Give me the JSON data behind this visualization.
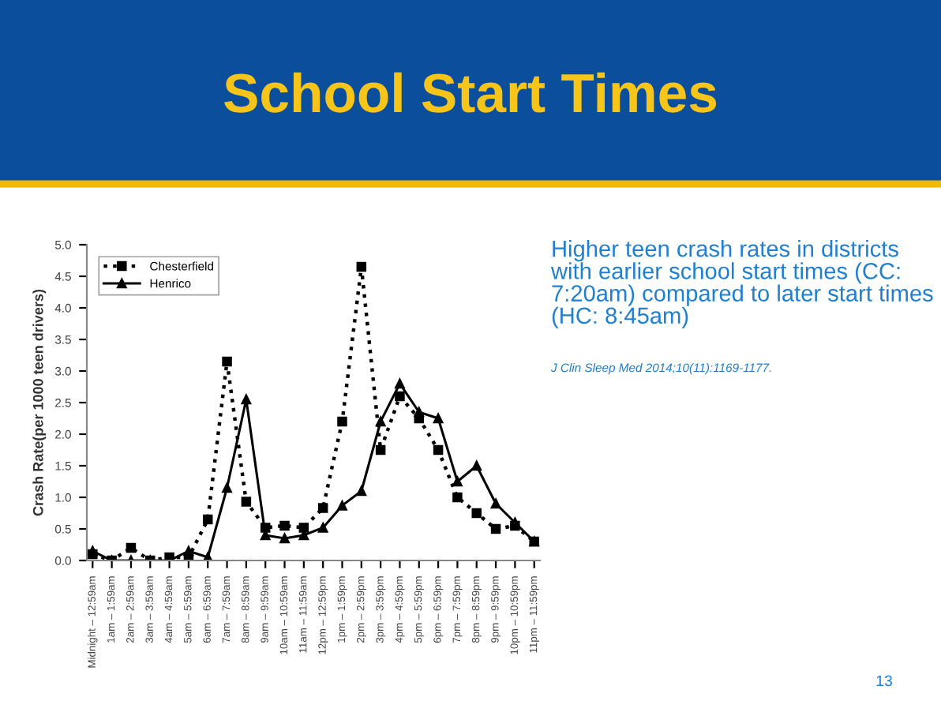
{
  "chart_data": {
    "type": "line",
    "title": "School Start Times",
    "ylabel": "Crash Rate(per 1000 teen drivers)",
    "annotations": [
      "Higher teen crash rates in districts with earlier school start times (CC: 7:20am) compared to later start times (HC: 8:45am)",
      "J Clin Sleep Med 2014;10(11):1169-1177.",
      "13"
    ],
    "categories": [
      "Midnight – 12:59am",
      "1am – 1:59am",
      "2am – 2:59am",
      "3am – 3:59am",
      "4am – 4:59am",
      "5am – 5:59am",
      "6am – 6:59am",
      "7am – 7:59am",
      "8am – 8:59am",
      "9am – 9:59am",
      "10am – 10:59am",
      "11am – 11:59am",
      "12pm – 12:59pm",
      "1pm – 1:59pm",
      "2pm – 2:59pm",
      "3pm – 3:59pm",
      "4pm – 4:59pm",
      "5pm – 5:59pm",
      "6pm – 6:59pm",
      "7pm – 7:59pm",
      "8pm – 8:59pm",
      "9pm – 9:59pm",
      "10pm – 10:59pm",
      "11pm – 11:59pm"
    ],
    "series": [
      {
        "name": "Chesterfield",
        "color": "#000000",
        "marker": "square",
        "line_style": "dotted",
        "values": [
          0.1,
          0.0,
          0.2,
          0.0,
          0.05,
          0.05,
          0.65,
          3.15,
          0.93,
          0.52,
          0.55,
          0.52,
          0.83,
          2.2,
          4.65,
          1.75,
          2.6,
          2.25,
          1.75,
          1.0,
          0.75,
          0.5,
          0.55,
          0.3
        ]
      },
      {
        "name": "Henrico",
        "color": "#000000",
        "marker": "triangle",
        "line_style": "solid",
        "values": [
          0.15,
          0.0,
          0.0,
          0.0,
          0.0,
          0.15,
          0.05,
          1.15,
          2.55,
          0.4,
          0.35,
          0.4,
          0.52,
          0.87,
          1.1,
          2.2,
          2.8,
          2.35,
          2.25,
          1.25,
          1.5,
          0.9,
          0.6,
          0.3
        ]
      }
    ],
    "ylim": [
      0,
      5
    ],
    "yticks": [
      {
        "value": 0,
        "label": "0.0"
      },
      0.5,
      {
        "value": 1,
        "label": "1.0"
      },
      1.5,
      {
        "value": 2,
        "label": "2.0"
      },
      2.5,
      {
        "value": 3,
        "label": "3.0"
      },
      3.5,
      {
        "value": 4,
        "label": "4.0"
      },
      4.5,
      {
        "value": 5,
        "label": "5.0"
      }
    ],
    "grid": false,
    "legend": "top left"
  }
}
